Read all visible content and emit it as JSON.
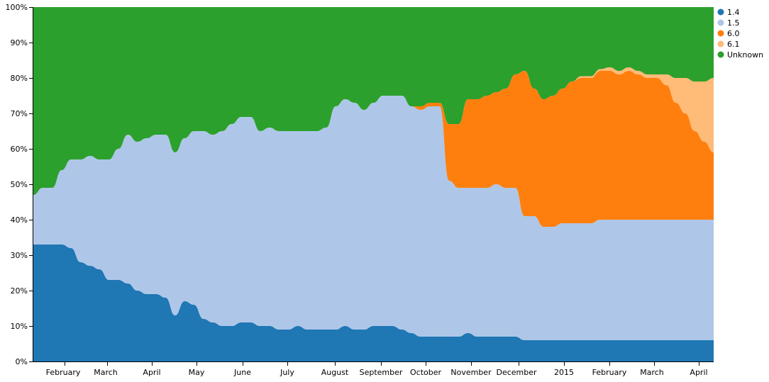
{
  "chart_data": {
    "type": "area",
    "stacked": "normalize",
    "x_tick_labels": [
      "February",
      "March",
      "April",
      "May",
      "June",
      "July",
      "August",
      "September",
      "October",
      "November",
      "December",
      "2015",
      "February",
      "March",
      "April"
    ],
    "y_tick_labels": [
      "0%",
      "10%",
      "20%",
      "30%",
      "40%",
      "50%",
      "60%",
      "70%",
      "80%",
      "90%",
      "100%"
    ],
    "ylim": [
      0,
      1
    ],
    "legend_position": "top-right",
    "x": [
      0,
      2,
      4,
      6,
      8,
      10,
      12,
      14,
      16,
      18,
      20,
      22,
      24,
      26,
      28,
      30,
      32,
      34,
      36,
      38,
      40,
      42,
      44,
      46,
      48,
      50,
      52,
      54,
      56,
      58,
      60,
      62,
      64,
      66
    ],
    "series": [
      {
        "name": "1.4",
        "color": "#1f77b4",
        "values": [
          0.33,
          0.33,
          0.33,
          0.33,
          0.32,
          0.28,
          0.27,
          0.26,
          0.23,
          0.23,
          0.22,
          0.2,
          0.19,
          0.19,
          0.18,
          0.13,
          0.17,
          0.16,
          0.12,
          0.11,
          0.1,
          0.1,
          0.11,
          0.11,
          0.1,
          0.1,
          0.09,
          0.09,
          0.1,
          0.09,
          0.09,
          0.09,
          0.09,
          0.1
        ]
      },
      {
        "name": "1.5",
        "color": "#aec7e8",
        "values": [
          0.14,
          0.16,
          0.16,
          0.21,
          0.25,
          0.29,
          0.31,
          0.31,
          0.34,
          0.37,
          0.42,
          0.42,
          0.44,
          0.45,
          0.46,
          0.46,
          0.46,
          0.49,
          0.53,
          0.53,
          0.55,
          0.57,
          0.58,
          0.58,
          0.55,
          0.56,
          0.56,
          0.56,
          0.55,
          0.56,
          0.56,
          0.57,
          0.63,
          0.64
        ]
      },
      {
        "name": "6.0",
        "color": "#ff7f0e",
        "values": [
          0,
          0,
          0,
          0,
          0,
          0,
          0,
          0,
          0,
          0,
          0,
          0,
          0,
          0,
          0,
          0,
          0,
          0,
          0,
          0,
          0,
          0,
          0,
          0,
          0,
          0,
          0,
          0,
          0,
          0,
          0,
          0,
          0,
          0
        ]
      },
      {
        "name": "6.1",
        "color": "#ffbb78",
        "values": [
          0,
          0,
          0,
          0,
          0,
          0,
          0,
          0,
          0,
          0,
          0,
          0,
          0,
          0,
          0,
          0,
          0,
          0,
          0,
          0,
          0,
          0,
          0,
          0,
          0,
          0,
          0,
          0,
          0,
          0,
          0,
          0,
          0,
          0
        ]
      },
      {
        "name": "Unknown",
        "color": "#2ca02c",
        "values": [
          0.53,
          0.51,
          0.51,
          0.46,
          0.43,
          0.43,
          0.42,
          0.43,
          0.43,
          0.4,
          0.36,
          0.38,
          0.37,
          0.36,
          0.36,
          0.41,
          0.37,
          0.35,
          0.35,
          0.36,
          0.35,
          0.33,
          0.31,
          0.31,
          0.35,
          0.34,
          0.35,
          0.35,
          0.35,
          0.35,
          0.35,
          0.34,
          0.28,
          0.26
        ]
      }
    ],
    "x_continued": [
      68,
      70,
      72,
      74,
      76,
      78,
      80,
      82,
      84,
      86,
      88,
      90,
      92,
      94,
      96,
      98,
      100,
      102,
      104,
      106,
      108,
      110,
      112,
      114,
      116,
      118,
      120,
      122,
      124,
      126,
      128,
      130,
      132,
      134,
      136,
      138,
      140,
      142,
      144
    ],
    "series_continued": [
      {
        "name": "1.4",
        "values": [
          0.09,
          0.09,
          0.1,
          0.1,
          0.1,
          0.09,
          0.08,
          0.07,
          0.07,
          0.07,
          0.07,
          0.07,
          0.08,
          0.07,
          0.07,
          0.07,
          0.07,
          0.07,
          0.06,
          0.06,
          0.06,
          0.06,
          0.06,
          0.06,
          0.06,
          0.06,
          0.06,
          0.06,
          0.06,
          0.06,
          0.06,
          0.06,
          0.06,
          0.06,
          0.06,
          0.06,
          0.06,
          0.06,
          0.06
        ]
      },
      {
        "name": "1.5",
        "values": [
          0.64,
          0.62,
          0.63,
          0.65,
          0.65,
          0.66,
          0.64,
          0.64,
          0.65,
          0.65,
          0.44,
          0.42,
          0.41,
          0.42,
          0.42,
          0.43,
          0.42,
          0.42,
          0.35,
          0.35,
          0.32,
          0.32,
          0.33,
          0.33,
          0.33,
          0.33,
          0.34,
          0.34,
          0.34,
          0.34,
          0.34,
          0.34,
          0.34,
          0.34,
          0.34,
          0.34,
          0.34,
          0.34,
          0.34
        ]
      },
      {
        "name": "6.0",
        "values": [
          0,
          0,
          0,
          0,
          0,
          0,
          0,
          0.01,
          0.01,
          0.01,
          0.16,
          0.18,
          0.25,
          0.25,
          0.26,
          0.26,
          0.28,
          0.32,
          0.41,
          0.36,
          0.36,
          0.37,
          0.38,
          0.4,
          0.41,
          0.41,
          0.42,
          0.42,
          0.41,
          0.42,
          0.41,
          0.4,
          0.4,
          0.38,
          0.33,
          0.3,
          0.25,
          0.22,
          0.19
        ]
      },
      {
        "name": "6.1",
        "values": [
          0,
          0,
          0,
          0,
          0,
          0,
          0,
          0,
          0,
          0,
          0,
          0,
          0,
          0,
          0,
          0,
          0,
          0,
          0,
          0,
          0,
          0,
          0,
          0,
          0.005,
          0.005,
          0.005,
          0.01,
          0.01,
          0.01,
          0.01,
          0.01,
          0.01,
          0.03,
          0.07,
          0.1,
          0.14,
          0.17,
          0.21
        ]
      },
      {
        "name": "Unknown",
        "values": [
          0.27,
          0.29,
          0.27,
          0.25,
          0.25,
          0.25,
          0.28,
          0.28,
          0.27,
          0.27,
          0.33,
          0.33,
          0.26,
          0.26,
          0.25,
          0.24,
          0.23,
          0.19,
          0.18,
          0.23,
          0.26,
          0.25,
          0.23,
          0.21,
          0.195,
          0.195,
          0.175,
          0.17,
          0.18,
          0.17,
          0.18,
          0.19,
          0.19,
          0.19,
          0.2,
          0.2,
          0.21,
          0.21,
          0.2
        ]
      }
    ],
    "x_ticks_at": [
      6,
      21,
      37,
      53,
      69,
      84,
      101,
      117,
      132,
      148,
      165,
      181,
      197,
      213,
      229
    ]
  }
}
